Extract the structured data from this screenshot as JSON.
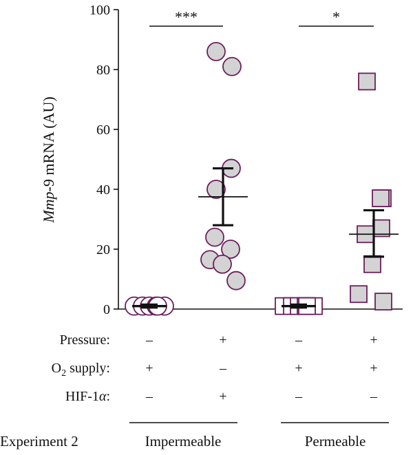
{
  "chart_data": {
    "type": "scatter",
    "ylabel": {
      "italic": "Mmp",
      "rest": "-9 mRNA (AU)"
    },
    "ylim": [
      0,
      100
    ],
    "yticks": [
      0,
      20,
      40,
      60,
      80,
      100
    ],
    "groups": [
      {
        "condition": {
          "pressure": "–",
          "o2": "+",
          "hif": "–"
        },
        "marker": "circle",
        "fill": "open",
        "points": [
          1,
          1,
          1,
          1,
          1,
          1
        ],
        "mean": 1,
        "sem": [
          0.5,
          1.5
        ]
      },
      {
        "condition": {
          "pressure": "+",
          "o2": "–",
          "hif": "+"
        },
        "marker": "circle",
        "fill": "gray",
        "points": [
          86,
          81,
          47,
          40,
          24,
          20,
          16.5,
          15,
          9.5
        ],
        "mean": 37.5,
        "sem": [
          28,
          47
        ]
      },
      {
        "condition": {
          "pressure": "–",
          "o2": "+",
          "hif": "–"
        },
        "marker": "square",
        "fill": "open",
        "points": [
          1,
          1,
          1,
          1,
          1,
          1
        ],
        "mean": 1,
        "sem": [
          0.5,
          1.5
        ]
      },
      {
        "condition": {
          "pressure": "+",
          "o2": "+",
          "hif": "–"
        },
        "marker": "square",
        "fill": "gray",
        "points": [
          76,
          37,
          37,
          27,
          25,
          15,
          5,
          2.5
        ],
        "mean": 25,
        "sem": [
          17.5,
          33
        ]
      }
    ],
    "significance": [
      {
        "between": [
          0,
          1
        ],
        "label": "***"
      },
      {
        "between": [
          2,
          3
        ],
        "label": "*"
      }
    ],
    "row_labels": {
      "pressure": "Pressure:",
      "o2_prefix": "O",
      "o2_sub": "2",
      "o2_suffix": " supply:",
      "hif_prefix": "HIF-1",
      "hif_alpha": "α",
      "hif_suffix": ":"
    },
    "experiment_label": "Experiment 2",
    "group_labels": [
      "Impermeable",
      "Permeable"
    ],
    "colors": {
      "outline": "#6b1d5c",
      "gray_fill": "#d3d3d3",
      "axis": "#111111"
    }
  }
}
